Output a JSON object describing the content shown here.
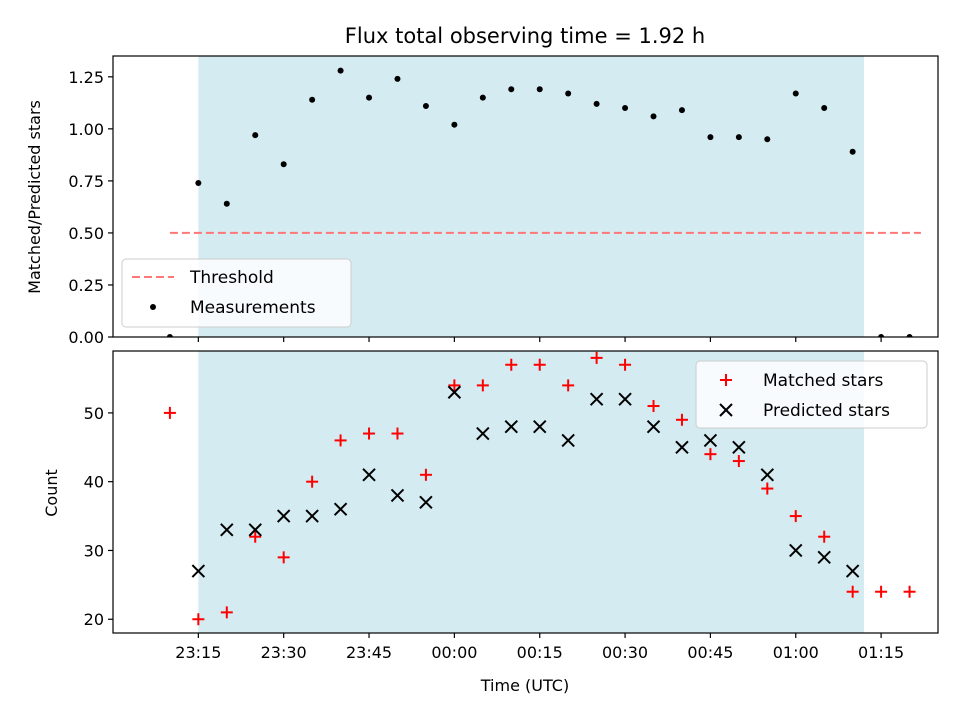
{
  "chart_data": [
    {
      "type": "scatter",
      "title": "Flux total observing time = 1.92 h",
      "xlabel": "",
      "ylabel": "Matched/Predicted stars",
      "ylim": [
        0,
        1.35
      ],
      "yticks": [
        0.0,
        0.25,
        0.5,
        0.75,
        1.0,
        1.25
      ],
      "ytick_labels": [
        "0.00",
        "0.25",
        "0.50",
        "0.75",
        "1.00",
        "1.25"
      ],
      "x_range_minutes": [
        -60,
        85
      ],
      "shaded_region_minutes": [
        -45,
        72
      ],
      "shade_color": "#d4ebf2",
      "threshold": {
        "name": "Threshold",
        "value": 0.5,
        "x_from": -50,
        "x_to": 82,
        "color": "#ff7777"
      },
      "series": [
        {
          "name": "Measurements",
          "color": "#000000",
          "x": [
            -50,
            -45,
            -40,
            -35,
            -30,
            -25,
            -20,
            -15,
            -10,
            -5,
            0,
            5,
            10,
            15,
            20,
            25,
            30,
            35,
            40,
            45,
            50,
            55,
            60,
            65,
            70,
            75,
            80
          ],
          "y": [
            0.0,
            0.74,
            0.64,
            0.97,
            0.83,
            1.14,
            1.28,
            1.15,
            1.24,
            1.11,
            1.02,
            1.15,
            1.19,
            1.19,
            1.17,
            1.12,
            1.1,
            1.06,
            1.09,
            0.96,
            0.96,
            0.95,
            1.17,
            1.1,
            0.89,
            0.0,
            0.0
          ]
        }
      ],
      "legend": {
        "position": "lower-left",
        "entries": [
          "Threshold",
          "Measurements"
        ]
      }
    },
    {
      "type": "scatter",
      "xlabel": "Time (UTC)",
      "ylabel": "Count",
      "ylim": [
        18,
        59
      ],
      "yticks": [
        20,
        30,
        40,
        50
      ],
      "ytick_labels": [
        "20",
        "30",
        "40",
        "50"
      ],
      "x_range_minutes": [
        -60,
        85
      ],
      "xticks_minutes": [
        -45,
        -30,
        -15,
        0,
        15,
        30,
        45,
        60,
        75
      ],
      "xtick_labels": [
        "23:15",
        "23:30",
        "23:45",
        "00:00",
        "00:15",
        "00:30",
        "00:45",
        "01:00",
        "01:15"
      ],
      "shaded_region_minutes": [
        -45,
        72
      ],
      "series": [
        {
          "name": "Matched stars",
          "marker": "+",
          "color": "#ff0000",
          "x": [
            -50,
            -45,
            -40,
            -35,
            -30,
            -25,
            -20,
            -15,
            -10,
            -5,
            0,
            5,
            10,
            15,
            20,
            25,
            30,
            35,
            40,
            45,
            50,
            55,
            60,
            65,
            70,
            75,
            80
          ],
          "y": [
            50,
            20,
            21,
            32,
            29,
            40,
            46,
            47,
            47,
            41,
            54,
            54,
            57,
            57,
            54,
            58,
            57,
            51,
            49,
            44,
            43,
            39,
            35,
            32,
            24,
            24,
            24
          ]
        },
        {
          "name": "Predicted stars",
          "marker": "x",
          "color": "#000000",
          "x": [
            -45,
            -40,
            -35,
            -30,
            -25,
            -20,
            -15,
            -10,
            -5,
            0,
            5,
            10,
            15,
            20,
            25,
            30,
            35,
            40,
            45,
            50,
            55,
            60,
            65,
            70
          ],
          "y": [
            27,
            33,
            33,
            35,
            35,
            36,
            41,
            38,
            37,
            53,
            47,
            48,
            48,
            46,
            52,
            52,
            48,
            45,
            46,
            45,
            41,
            30,
            29,
            27
          ]
        }
      ],
      "legend": {
        "position": "upper-right",
        "entries": [
          "Matched stars",
          "Predicted stars"
        ]
      }
    }
  ]
}
